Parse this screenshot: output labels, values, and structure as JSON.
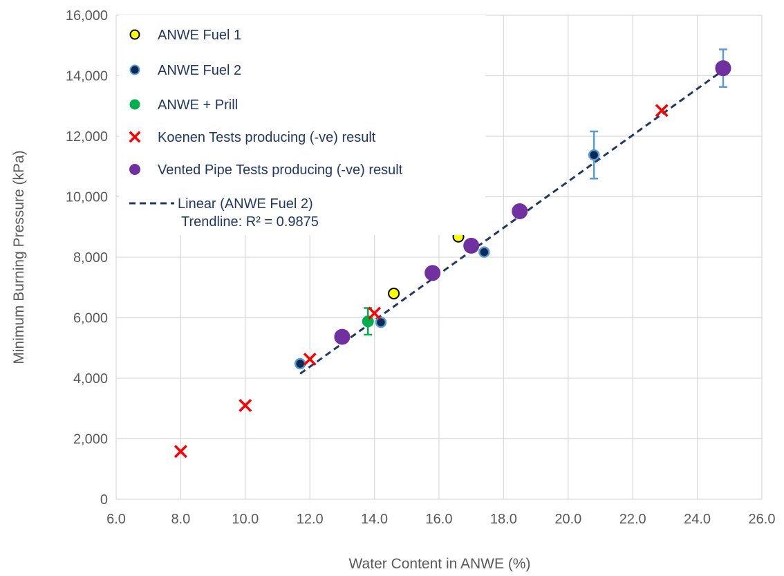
{
  "chart_data": {
    "type": "scatter",
    "xlabel": "Water Content in ANWE (%)",
    "ylabel": "Minimum Burning Pressure (kPa)",
    "xlim": [
      6.0,
      26.0
    ],
    "ylim": [
      0,
      16000
    ],
    "x_ticks": [
      "6.0",
      "8.0",
      "10.0",
      "12.0",
      "14.0",
      "16.0",
      "18.0",
      "20.0",
      "22.0",
      "24.0",
      "26.0"
    ],
    "y_ticks": [
      "0",
      "2,000",
      "4,000",
      "6,000",
      "8,000",
      "10,000",
      "12,000",
      "14,000",
      "16,000"
    ],
    "grid": true,
    "legend_position": "top-left",
    "series": [
      {
        "name": "ANWE Fuel 1",
        "marker": "circle",
        "color": "#ffff00",
        "edge_color": "#000000",
        "points": [
          {
            "x": 14.6,
            "y": 6800
          },
          {
            "x": 16.6,
            "y": 8680
          }
        ]
      },
      {
        "name": "ANWE Fuel 2",
        "marker": "circle",
        "color": "#0b2a55",
        "edge_color": "#5b9bd5",
        "points": [
          {
            "x": 11.7,
            "y": 4480
          },
          {
            "x": 14.2,
            "y": 5850
          },
          {
            "x": 17.4,
            "y": 8170
          },
          {
            "x": 20.8,
            "y": 11380,
            "err": 780
          }
        ]
      },
      {
        "name": "ANWE + Prill",
        "marker": "circle",
        "color": "#00b050",
        "edge_color": "#00b050",
        "points": [
          {
            "x": 13.8,
            "y": 5880,
            "err": 440
          }
        ]
      },
      {
        "name": "Koenen Tests producing (-ve) result",
        "marker": "x",
        "color": "#ff0000",
        "points": [
          {
            "x": 8.0,
            "y": 1580
          },
          {
            "x": 10.0,
            "y": 3100
          },
          {
            "x": 12.0,
            "y": 4630
          },
          {
            "x": 14.0,
            "y": 6150
          },
          {
            "x": 22.9,
            "y": 12850
          }
        ]
      },
      {
        "name": "Vented Pipe Tests producing (-ve) result",
        "marker": "circle",
        "color": "#7030a0",
        "edge_color": "#7030a0",
        "points": [
          {
            "x": 13.0,
            "y": 5370
          },
          {
            "x": 15.8,
            "y": 7480
          },
          {
            "x": 17.0,
            "y": 8380
          },
          {
            "x": 18.5,
            "y": 9520
          },
          {
            "x": 24.8,
            "y": 14250,
            "err": 620
          }
        ]
      }
    ],
    "trendline": {
      "name": "Linear (ANWE Fuel 2)",
      "annotation": "Trendline: R² = 0.9875",
      "color": "#1f3864",
      "style": "dashed",
      "start": {
        "x": 11.7,
        "y": 4150
      },
      "end": {
        "x": 24.8,
        "y": 14180
      }
    },
    "legend": [
      "ANWE Fuel 1",
      "ANWE Fuel 2",
      "ANWE + Prill",
      "Koenen Tests producing (-ve) result",
      "Vented Pipe Tests producing (-ve) result",
      "Linear (ANWE Fuel 2)"
    ]
  }
}
